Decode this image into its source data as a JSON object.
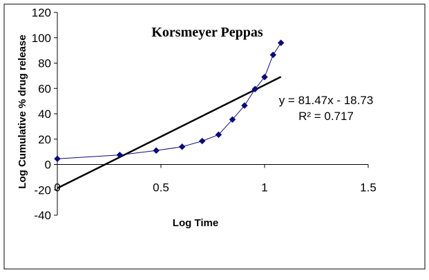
{
  "chart_data": {
    "type": "scatter",
    "title": "Korsmeyer Peppas",
    "xlabel": "Log Time",
    "ylabel": "Log Cumulative % drug release",
    "xlim": [
      0,
      1.5
    ],
    "ylim": [
      -40,
      120
    ],
    "x_ticks": [
      0,
      0.5,
      1,
      1.5
    ],
    "x_tick_labels": [
      "0",
      "0.5",
      "1",
      "1.5"
    ],
    "y_ticks": [
      -40,
      -20,
      0,
      20,
      40,
      60,
      80,
      100,
      120
    ],
    "y_tick_labels": [
      "-40",
      "-20",
      "0",
      "20",
      "40",
      "60",
      "80",
      "100",
      "120"
    ],
    "grid": false,
    "legend": "none",
    "series": [
      {
        "values_x": [
          0,
          0.301,
          0.477,
          0.602,
          0.699,
          0.778,
          0.845,
          0.903,
          0.954,
          1.0,
          1.041,
          1.079
        ],
        "values_y": [
          4.5,
          7.5,
          11,
          14,
          18.5,
          23.5,
          35.5,
          46.5,
          59.5,
          69,
          86.5,
          96
        ],
        "color": "#0a0a7a",
        "marker": "diamond",
        "connected": true
      }
    ],
    "trendline": {
      "slope": 81.47,
      "intercept": -18.73,
      "x_range": [
        0,
        1.079
      ],
      "color": "#000000"
    },
    "annotations": {
      "equation": "y = 81.47x - 18.73",
      "r_squared": "R² = 0.717"
    }
  }
}
